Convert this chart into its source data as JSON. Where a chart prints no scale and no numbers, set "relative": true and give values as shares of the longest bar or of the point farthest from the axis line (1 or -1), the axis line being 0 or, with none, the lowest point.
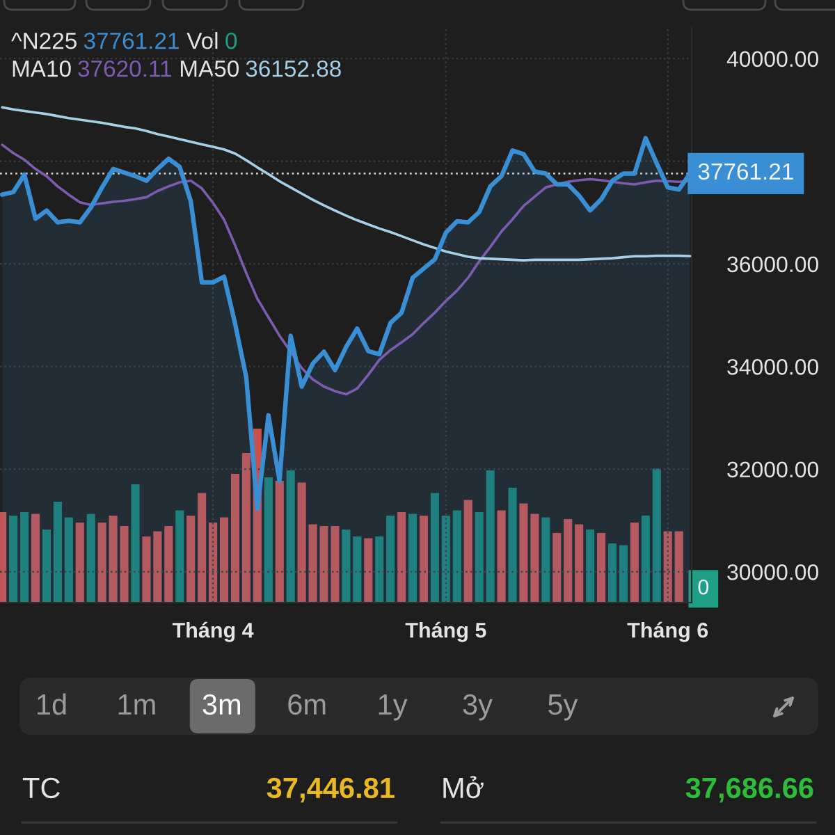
{
  "chart_data": [
    {
      "type": "line",
      "categories": [
        null,
        null,
        null,
        null,
        null,
        null,
        null,
        null,
        null,
        null,
        null,
        null,
        null,
        null,
        null,
        null,
        null,
        null,
        null,
        "Tháng 4",
        null,
        null,
        null,
        null,
        null,
        null,
        null,
        null,
        null,
        null,
        null,
        null,
        null,
        null,
        null,
        null,
        null,
        null,
        null,
        null,
        "Tháng 5",
        null,
        null,
        null,
        null,
        null,
        null,
        null,
        null,
        null,
        null,
        null,
        null,
        null,
        null,
        null,
        null,
        null,
        null,
        null,
        "Tháng 6",
        null,
        null
      ],
      "series": [
        {
          "type": "area",
          "color": "#3a8fd4",
          "values": [
            37350,
            37400,
            37740,
            36880,
            37040,
            36810,
            36840,
            36810,
            37100,
            37490,
            37850,
            37780,
            37710,
            37620,
            37850,
            38050,
            37890,
            37220,
            35640,
            35640,
            35750,
            34830,
            33790,
            31230,
            33050,
            31770,
            34600,
            33610,
            34060,
            34290,
            33930,
            34380,
            34740,
            34300,
            34240,
            34850,
            35050,
            35730,
            35910,
            36090,
            36610,
            36830,
            36810,
            37010,
            37510,
            37710,
            38210,
            38140,
            37800,
            37760,
            37550,
            37550,
            37330,
            37040,
            37260,
            37620,
            37760,
            37760,
            38450,
            37960,
            37490,
            37450,
            37761.21
          ]
        },
        {
          "color": "#7b5cb0",
          "values": [
            38320,
            38160,
            38030,
            37850,
            37710,
            37510,
            37350,
            37200,
            37150,
            37180,
            37210,
            37230,
            37260,
            37300,
            37420,
            37510,
            37590,
            37620,
            37470,
            37190,
            36860,
            36360,
            35820,
            35320,
            34960,
            34600,
            34290,
            33970,
            33750,
            33610,
            33520,
            33460,
            33570,
            33840,
            34130,
            34320,
            34470,
            34630,
            34850,
            35050,
            35280,
            35480,
            35730,
            36050,
            36330,
            36630,
            36870,
            37130,
            37310,
            37490,
            37550,
            37600,
            37630,
            37650,
            37630,
            37600,
            37570,
            37550,
            37590,
            37620,
            37610,
            37600,
            37620.11
          ]
        },
        {
          "color": "#a6cfe8",
          "values": [
            39050,
            39010,
            38980,
            38950,
            38920,
            38880,
            38840,
            38810,
            38780,
            38750,
            38710,
            38670,
            38640,
            38590,
            38530,
            38480,
            38430,
            38380,
            38330,
            38280,
            38230,
            38150,
            38020,
            37880,
            37750,
            37610,
            37490,
            37370,
            37250,
            37140,
            37040,
            36940,
            36850,
            36770,
            36690,
            36620,
            36540,
            36460,
            36380,
            36310,
            36240,
            36190,
            36140,
            36110,
            36100,
            36090,
            36080,
            36070,
            36080,
            36080,
            36080,
            36080,
            36080,
            36090,
            36100,
            36110,
            36130,
            36150,
            36150,
            36160,
            36160,
            36160,
            36152.88
          ]
        }
      ],
      "ylim": [
        29400,
        40600
      ],
      "yticks": [
        {
          "value": 30000,
          "label": "30000.00"
        },
        {
          "value": 32000,
          "label": "32000.00"
        },
        {
          "value": 34000,
          "label": "34000.00"
        },
        {
          "value": 36000,
          "label": "36000.00"
        },
        {
          "value": 38000,
          "label": null
        },
        {
          "value": 40000,
          "label": "40000.00"
        }
      ],
      "grid": true,
      "ref_lines": [
        {
          "axis": "y",
          "value": 37761.21,
          "label": "37761.21",
          "color": "#c8c8c8",
          "line_style": "dotted"
        }
      ],
      "annotations": [
        "^N225",
        "37761.21",
        "MA10",
        "37620.11",
        "MA50",
        "36152.88"
      ]
    },
    {
      "type": "bar",
      "relative": true,
      "categories": [
        null,
        null,
        null,
        null,
        null,
        null,
        null,
        null,
        null,
        null,
        null,
        null,
        null,
        null,
        null,
        null,
        null,
        null,
        null,
        null,
        null,
        null,
        null,
        null,
        null,
        null,
        null,
        null,
        null,
        null,
        null,
        null,
        null,
        null,
        null,
        null,
        null,
        null,
        null,
        null,
        null,
        null,
        null,
        null,
        null,
        null,
        null,
        null,
        null,
        null,
        null,
        null,
        null,
        null,
        null,
        null,
        null,
        null,
        null,
        null,
        null,
        null,
        null
      ],
      "series": [
        {
          "color": "#1f9e86",
          "colors": [
            "#c65250",
            "#1a7f73",
            "#1a7f73",
            "#c65250",
            "#1a7f73",
            "#1a7f73",
            "#1a7f73",
            "#c65250",
            "#1a7f73",
            "#c65250",
            "#c65250",
            "#c65250",
            "#1a7f73",
            "#c65250",
            "#c65250",
            "#c65250",
            "#1a7f73",
            "#c65250",
            "#c65250",
            "#c65250",
            "#c65250",
            "#c65250",
            "#c65250",
            "#c65250",
            "#1a7f73",
            "#c65250",
            "#1a7f73",
            "#c65250",
            "#c65250",
            "#c65250",
            "#c65250",
            "#1a7f73",
            "#1a7f73",
            "#c65250",
            "#1a7f73",
            "#1a7f73",
            "#c65250",
            "#1a7f73",
            "#c65250",
            "#1a7f73",
            "#1a7f73",
            "#1a7f73",
            "#c65250",
            "#1a7f73",
            "#1a7f73",
            "#c65250",
            "#1a7f73",
            "#c65250",
            "#c65250",
            "#1a7f73",
            "#c65250",
            "#c65250",
            "#c65250",
            "#1a7f73",
            "#c65250",
            "#1a7f73",
            "#1a7f73",
            "#c65250",
            "#1a7f73",
            "#1a7f73",
            "#c65250",
            "#c65250",
            "#1a7f73"
          ],
          "values": [
            0.52,
            0.5,
            0.52,
            0.51,
            0.42,
            0.58,
            0.49,
            0.46,
            0.51,
            0.46,
            0.5,
            0.44,
            0.68,
            0.38,
            0.41,
            0.44,
            0.53,
            0.5,
            0.63,
            0.46,
            0.49,
            0.74,
            0.86,
            1,
            0.72,
            0.7,
            0.76,
            0.69,
            0.45,
            0.44,
            0.44,
            0.42,
            0.38,
            0.37,
            0.38,
            0.5,
            0.52,
            0.51,
            0.5,
            0.63,
            0.5,
            0.53,
            0.59,
            0.52,
            0.76,
            0.53,
            0.66,
            0.57,
            0.51,
            0.49,
            0.4,
            0.48,
            0.45,
            0.42,
            0.4,
            0.34,
            0.33,
            0.46,
            0.5,
            0.77,
            0.41,
            0.41,
            0
          ]
        }
      ],
      "annotations": [
        "Vol",
        "0",
        "0"
      ]
    },
    {
      "type": "other",
      "annotations": [
        "1d",
        "1m",
        "3m",
        "6m",
        "1y",
        "3y",
        "5y",
        "TC",
        "37,446.81",
        "Mở",
        "37,686.66"
      ]
    }
  ]
}
